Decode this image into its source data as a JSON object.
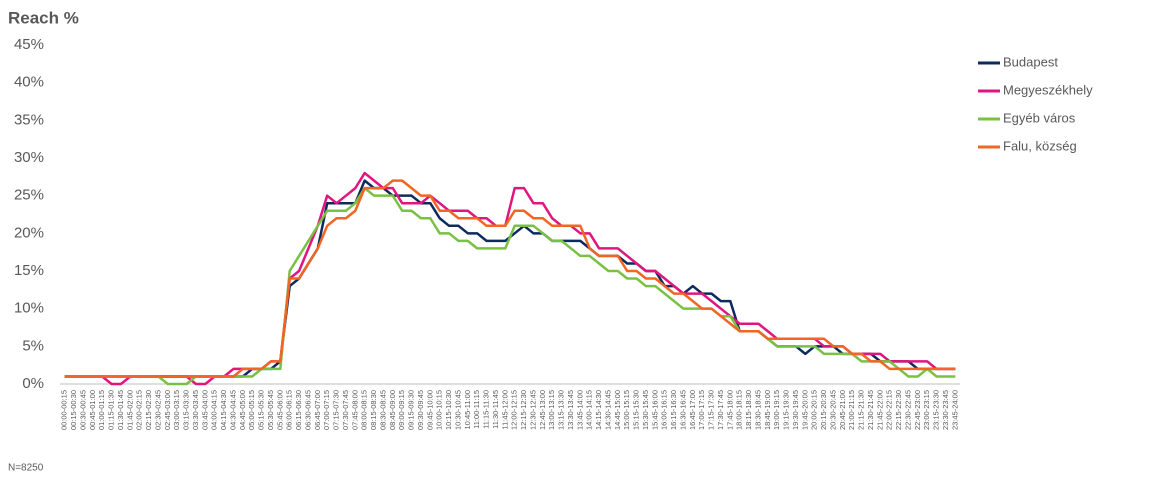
{
  "chart_data": {
    "type": "line",
    "title": "Reach %",
    "note": "N=8250",
    "categories": [
      "00:00-00:15",
      "00:15-00:30",
      "00:30-00:45",
      "00:45-01:00",
      "01:00-01:15",
      "01:15-01:30",
      "01:30-01:45",
      "01:45-02:00",
      "02:00-02:15",
      "02:15-02:30",
      "02:30-02:45",
      "02:45-03:00",
      "03:00-03:15",
      "03:15-03:30",
      "03:30-03:45",
      "03:45-04:00",
      "04:00-04:15",
      "04:15-04:30",
      "04:30-04:45",
      "04:45-05:00",
      "05:00-05:15",
      "05:15-05:30",
      "05:30-05:45",
      "05:45-06:00",
      "06:00-06:15",
      "06:15-06:30",
      "06:30-06:45",
      "06:45-07:00",
      "07:00-07:15",
      "07:15-07:30",
      "07:30-07:45",
      "07:45-08:00",
      "08:00-08:15",
      "08:15-08:30",
      "08:30-08:45",
      "08:45-09:00",
      "09:00-09:15",
      "09:15-09:30",
      "09:30-09:45",
      "09:45-10:00",
      "10:00-10:15",
      "10:15-10:30",
      "10:30-10:45",
      "10:45-11:00",
      "11:00-11:15",
      "11:15-11:30",
      "11:30-11:45",
      "11:45-12:00",
      "12:00-12:15",
      "12:15-12:30",
      "12:30-12:45",
      "12:45-13:00",
      "13:00-13:15",
      "13:15-13:30",
      "13:30-13:45",
      "13:45-14:00",
      "14:00-14:15",
      "14:15-14:30",
      "14:30-14:45",
      "14:45-15:00",
      "15:00-15:15",
      "15:15-15:30",
      "15:30-15:45",
      "15:45-16:00",
      "16:00-16:15",
      "16:15-16:30",
      "16:30-16:45",
      "16:45-17:00",
      "17:00-17:15",
      "17:15-17:30",
      "17:30-17:45",
      "17:45-18:00",
      "18:00-18:15",
      "18:15-18:30",
      "18:30-18:45",
      "18:45-19:00",
      "19:00-19:15",
      "19:15-19:30",
      "19:30-19:45",
      "19:45-20:00",
      "20:00-20:15",
      "20:15-20:30",
      "20:30-20:45",
      "20:45-21:00",
      "21:00-21:15",
      "21:15-21:30",
      "21:30-21:45",
      "21:45-22:00",
      "22:00-22:15",
      "22:15-22:30",
      "22:30-22:45",
      "22:45-23:00",
      "23:00-23:15",
      "23:15-23:30",
      "23:30-23:45",
      "23:45-24:00"
    ],
    "series": [
      {
        "name": "Budapest",
        "color": "#0d2a5e",
        "values": [
          1,
          1,
          1,
          1,
          1,
          1,
          1,
          1,
          1,
          1,
          1,
          1,
          1,
          1,
          1,
          1,
          1,
          1,
          1,
          1,
          2,
          2,
          2,
          3,
          13,
          14,
          16,
          18,
          24,
          24,
          24,
          24,
          27,
          26,
          26,
          25,
          25,
          25,
          24,
          24,
          22,
          21,
          21,
          20,
          20,
          19,
          19,
          19,
          20,
          21,
          20,
          20,
          19,
          19,
          19,
          19,
          18,
          17,
          17,
          17,
          16,
          16,
          15,
          15,
          13,
          13,
          12,
          13,
          12,
          12,
          11,
          11,
          7,
          7,
          7,
          6,
          5,
          5,
          5,
          4,
          5,
          5,
          5,
          4,
          4,
          4,
          4,
          3,
          3,
          3,
          3,
          2,
          2,
          2,
          2,
          2
        ]
      },
      {
        "name": "Megyeszékhely",
        "color": "#e0157f",
        "values": [
          1,
          1,
          1,
          1,
          1,
          0,
          0,
          1,
          1,
          1,
          1,
          1,
          1,
          1,
          0,
          0,
          1,
          1,
          2,
          2,
          2,
          2,
          3,
          3,
          14,
          15,
          18,
          21,
          25,
          24,
          25,
          26,
          28,
          27,
          26,
          26,
          24,
          24,
          24,
          25,
          24,
          23,
          23,
          23,
          22,
          22,
          21,
          21,
          26,
          26,
          24,
          24,
          22,
          21,
          21,
          20,
          20,
          18,
          18,
          18,
          17,
          16,
          15,
          15,
          14,
          13,
          12,
          12,
          12,
          11,
          10,
          9,
          8,
          8,
          8,
          7,
          6,
          6,
          6,
          6,
          6,
          5,
          5,
          5,
          4,
          4,
          4,
          4,
          3,
          3,
          3,
          3,
          3,
          2,
          2,
          2
        ]
      },
      {
        "name": "Egyéb város",
        "color": "#7ac143",
        "values": [
          1,
          1,
          1,
          1,
          1,
          1,
          1,
          1,
          1,
          1,
          1,
          0,
          0,
          0,
          1,
          1,
          1,
          1,
          1,
          1,
          1,
          2,
          2,
          2,
          15,
          17,
          19,
          21,
          23,
          23,
          23,
          24,
          26,
          25,
          25,
          25,
          23,
          23,
          22,
          22,
          20,
          20,
          19,
          19,
          18,
          18,
          18,
          18,
          21,
          21,
          21,
          20,
          19,
          19,
          18,
          17,
          17,
          16,
          15,
          15,
          14,
          14,
          13,
          13,
          12,
          11,
          10,
          10,
          10,
          10,
          9,
          9,
          7,
          7,
          7,
          6,
          5,
          5,
          5,
          5,
          5,
          4,
          4,
          4,
          4,
          3,
          3,
          3,
          3,
          2,
          1,
          1,
          2,
          1,
          1,
          1
        ]
      },
      {
        "name": "Falu, község",
        "color": "#f26522",
        "values": [
          1,
          1,
          1,
          1,
          1,
          1,
          1,
          1,
          1,
          1,
          1,
          1,
          1,
          1,
          1,
          1,
          1,
          1,
          1,
          2,
          2,
          2,
          3,
          3,
          14,
          14,
          16,
          18,
          21,
          22,
          22,
          23,
          26,
          26,
          26,
          27,
          27,
          26,
          25,
          25,
          23,
          23,
          22,
          22,
          22,
          21,
          21,
          21,
          23,
          23,
          22,
          22,
          21,
          21,
          21,
          21,
          18,
          17,
          17,
          17,
          15,
          15,
          14,
          14,
          13,
          12,
          12,
          11,
          10,
          10,
          9,
          8,
          7,
          7,
          7,
          6,
          6,
          6,
          6,
          6,
          6,
          6,
          5,
          5,
          4,
          4,
          3,
          3,
          2,
          2,
          2,
          2,
          2,
          2,
          2,
          2
        ]
      }
    ],
    "ylim": [
      0,
      45
    ],
    "yticks": [
      {
        "value": 0,
        "label": "0%"
      },
      {
        "value": 5,
        "label": "5%"
      },
      {
        "value": 10,
        "label": "10%"
      },
      {
        "value": 15,
        "label": "15%"
      },
      {
        "value": 20,
        "label": "20%"
      },
      {
        "value": 25,
        "label": "25%"
      },
      {
        "value": 30,
        "label": "30%"
      },
      {
        "value": 35,
        "label": "35%"
      },
      {
        "value": 40,
        "label": "40%"
      },
      {
        "value": 45,
        "label": "45%"
      }
    ],
    "grid": false,
    "legend_position": "top-right"
  }
}
